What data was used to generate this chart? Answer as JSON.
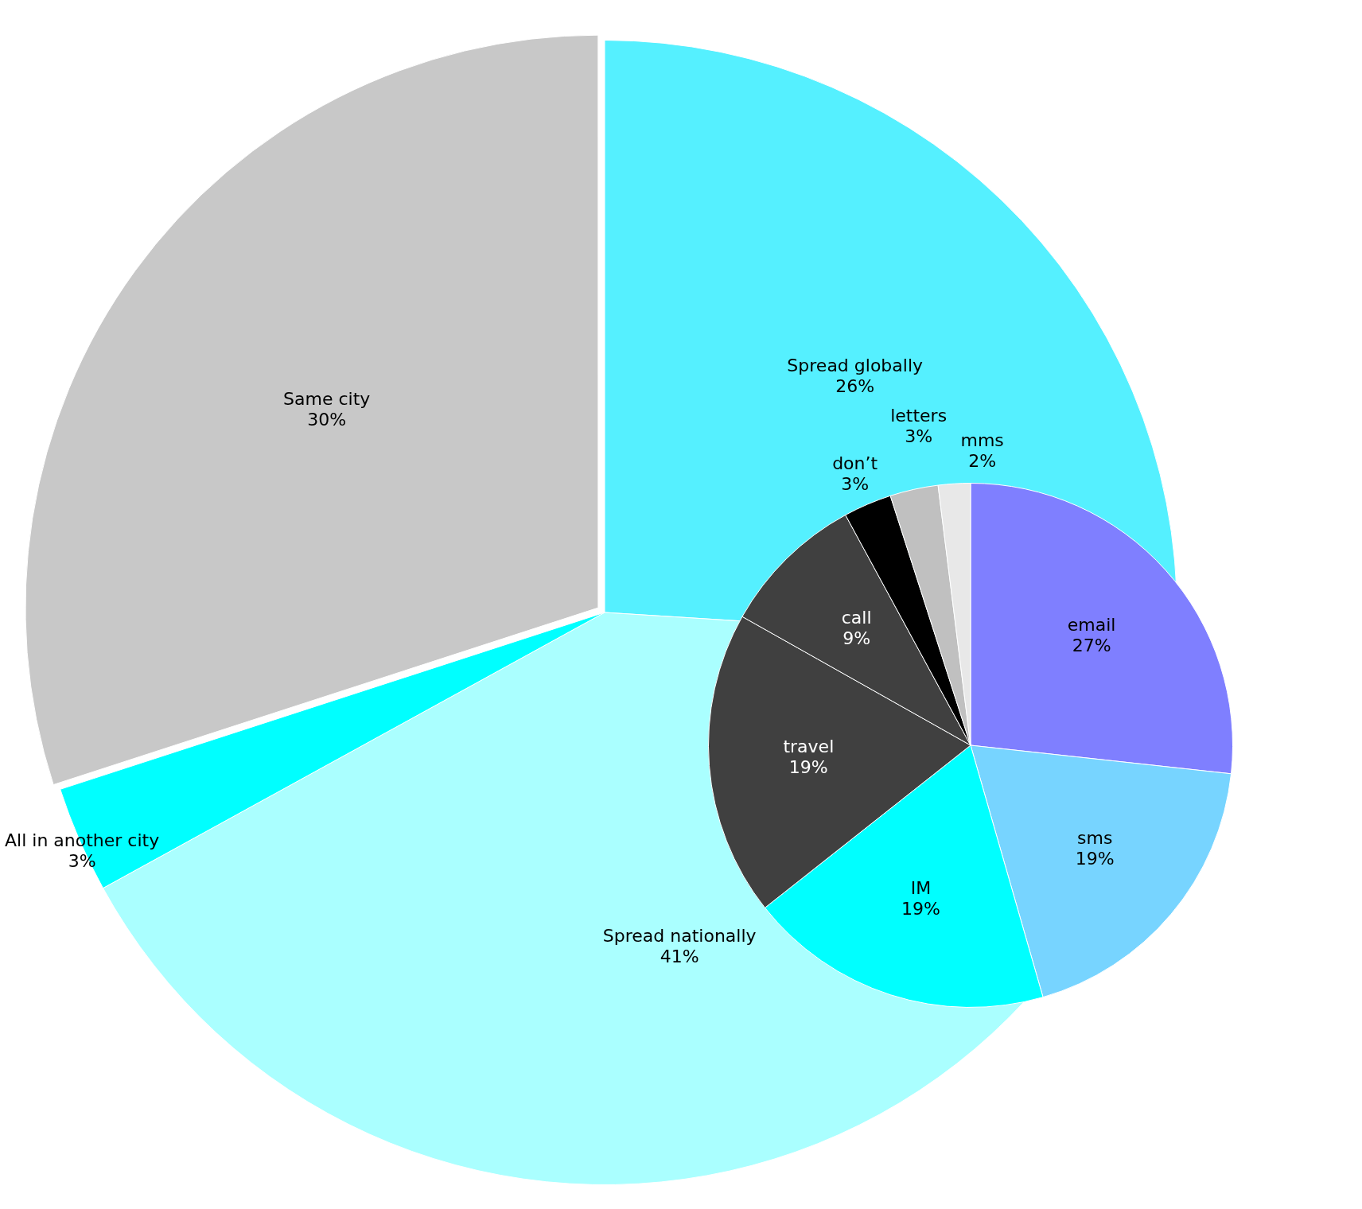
{
  "chart_data": [
    {
      "type": "pie",
      "categories": [
        "Spread globally",
        "Spread nationally",
        "All in another city",
        "Same city"
      ],
      "values": [
        26,
        41,
        3,
        30
      ],
      "value_labels": [
        "26%",
        "41%",
        "3%",
        "30%"
      ],
      "colors": [
        "#55f0ff",
        "#aaffff",
        "#00ffff",
        "#c8c8c8"
      ]
    },
    {
      "type": "pie",
      "categories": [
        "email",
        "sms",
        "IM",
        "travel",
        "call",
        "don’t",
        "letters",
        "mms"
      ],
      "values": [
        27,
        19,
        19,
        19,
        9,
        3,
        3,
        2
      ],
      "value_labels": [
        "27%",
        "19%",
        "19%",
        "19%",
        "9%",
        "3%",
        "3%",
        "2%"
      ],
      "colors": [
        "#7f7fff",
        "#77d4ff",
        "#00ffff",
        "#404040",
        "#404040",
        "#000000",
        "#c0c0c0",
        "#e8e8e8"
      ]
    }
  ]
}
